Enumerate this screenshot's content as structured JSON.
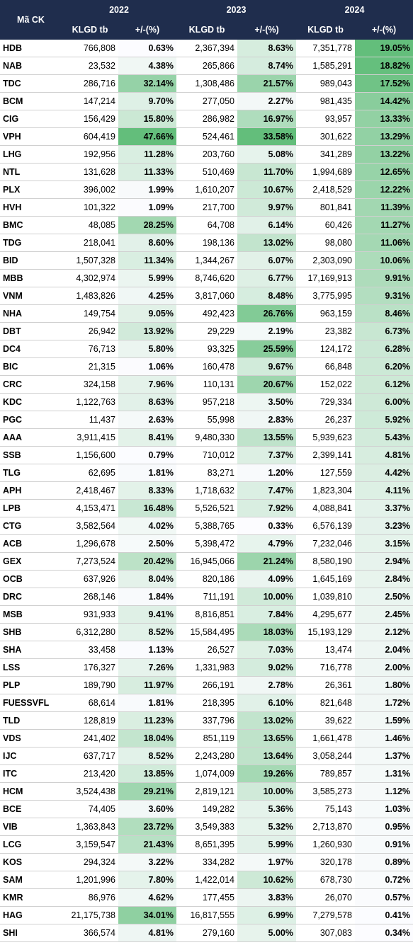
{
  "table": {
    "header": {
      "code": "Mã CK",
      "years": [
        "2022",
        "2023",
        "2024"
      ],
      "sub": [
        "KLGD tb",
        "+/-(%)",
        "KLGD tb",
        "+/-(%)",
        "KLGD tb",
        "+/-(%)"
      ]
    },
    "rows": [
      [
        "HDB",
        "766,808",
        "0.63%",
        "2,367,394",
        "8.63%",
        "7,351,778",
        "19.05%"
      ],
      [
        "NAB",
        "23,532",
        "4.38%",
        "265,866",
        "8.74%",
        "1,585,291",
        "18.82%"
      ],
      [
        "TDC",
        "286,716",
        "32.14%",
        "1,308,486",
        "21.57%",
        "989,043",
        "17.52%"
      ],
      [
        "BCM",
        "147,214",
        "9.70%",
        "277,050",
        "2.27%",
        "981,435",
        "14.42%"
      ],
      [
        "CIG",
        "156,429",
        "15.80%",
        "286,982",
        "16.97%",
        "93,957",
        "13.33%"
      ],
      [
        "VPH",
        "604,419",
        "47.66%",
        "524,461",
        "33.58%",
        "301,622",
        "13.29%"
      ],
      [
        "LHG",
        "192,956",
        "11.28%",
        "203,760",
        "5.08%",
        "341,289",
        "13.22%"
      ],
      [
        "NTL",
        "131,628",
        "11.33%",
        "510,469",
        "11.70%",
        "1,994,689",
        "12.65%"
      ],
      [
        "PLX",
        "396,002",
        "1.99%",
        "1,610,207",
        "10.67%",
        "2,418,529",
        "12.22%"
      ],
      [
        "HVH",
        "101,322",
        "1.09%",
        "217,700",
        "9.97%",
        "801,841",
        "11.39%"
      ],
      [
        "BMC",
        "48,085",
        "28.25%",
        "64,708",
        "6.14%",
        "60,426",
        "11.27%"
      ],
      [
        "TDG",
        "218,041",
        "8.60%",
        "198,136",
        "13.02%",
        "98,080",
        "11.06%"
      ],
      [
        "BID",
        "1,507,328",
        "11.34%",
        "1,344,267",
        "6.07%",
        "2,303,090",
        "10.06%"
      ],
      [
        "MBB",
        "4,302,974",
        "5.99%",
        "8,746,620",
        "6.77%",
        "17,169,913",
        "9.91%"
      ],
      [
        "VNM",
        "1,483,826",
        "4.25%",
        "3,817,060",
        "8.48%",
        "3,775,995",
        "9.31%"
      ],
      [
        "NHA",
        "149,754",
        "9.05%",
        "492,423",
        "26.76%",
        "963,159",
        "8.46%"
      ],
      [
        "DBT",
        "26,942",
        "13.92%",
        "29,229",
        "2.19%",
        "23,382",
        "6.73%"
      ],
      [
        "DC4",
        "76,713",
        "5.80%",
        "93,325",
        "25.59%",
        "124,172",
        "6.28%"
      ],
      [
        "BIC",
        "21,315",
        "1.06%",
        "160,478",
        "9.67%",
        "66,848",
        "6.20%"
      ],
      [
        "CRC",
        "324,158",
        "7.96%",
        "110,131",
        "20.67%",
        "152,022",
        "6.12%"
      ],
      [
        "KDC",
        "1,122,763",
        "8.63%",
        "957,218",
        "3.50%",
        "729,334",
        "6.00%"
      ],
      [
        "PGC",
        "11,437",
        "2.63%",
        "55,998",
        "2.83%",
        "26,237",
        "5.92%"
      ],
      [
        "AAA",
        "3,911,415",
        "8.41%",
        "9,480,330",
        "13.55%",
        "5,939,623",
        "5.43%"
      ],
      [
        "SSB",
        "1,156,600",
        "0.79%",
        "710,012",
        "7.37%",
        "2,399,141",
        "4.81%"
      ],
      [
        "TLG",
        "62,695",
        "1.81%",
        "83,271",
        "1.20%",
        "127,559",
        "4.42%"
      ],
      [
        "APH",
        "2,418,467",
        "8.33%",
        "1,718,632",
        "7.47%",
        "1,823,304",
        "4.11%"
      ],
      [
        "LPB",
        "4,153,471",
        "16.48%",
        "5,526,521",
        "7.92%",
        "4,088,841",
        "3.37%"
      ],
      [
        "CTG",
        "3,582,564",
        "4.02%",
        "5,388,765",
        "0.33%",
        "6,576,139",
        "3.23%"
      ],
      [
        "ACB",
        "1,296,678",
        "2.50%",
        "5,398,472",
        "4.79%",
        "7,232,046",
        "3.15%"
      ],
      [
        "GEX",
        "7,273,524",
        "20.42%",
        "16,945,066",
        "21.24%",
        "8,580,190",
        "2.94%"
      ],
      [
        "OCB",
        "637,926",
        "8.04%",
        "820,186",
        "4.09%",
        "1,645,169",
        "2.84%"
      ],
      [
        "DRC",
        "268,146",
        "1.84%",
        "711,191",
        "10.00%",
        "1,039,810",
        "2.50%"
      ],
      [
        "MSB",
        "931,933",
        "9.41%",
        "8,816,851",
        "7.84%",
        "4,295,677",
        "2.45%"
      ],
      [
        "SHB",
        "6,312,280",
        "8.52%",
        "15,584,495",
        "18.03%",
        "15,193,129",
        "2.12%"
      ],
      [
        "SHA",
        "33,458",
        "1.13%",
        "26,527",
        "7.03%",
        "13,474",
        "2.04%"
      ],
      [
        "LSS",
        "176,327",
        "7.26%",
        "1,331,983",
        "9.02%",
        "716,778",
        "2.00%"
      ],
      [
        "PLP",
        "189,790",
        "11.97%",
        "266,191",
        "2.78%",
        "26,361",
        "1.80%"
      ],
      [
        "FUESSVFL",
        "68,614",
        "1.81%",
        "218,395",
        "6.10%",
        "821,648",
        "1.72%"
      ],
      [
        "TLD",
        "128,819",
        "11.23%",
        "337,796",
        "13.02%",
        "39,622",
        "1.59%"
      ],
      [
        "VDS",
        "241,402",
        "18.04%",
        "851,119",
        "13.65%",
        "1,661,478",
        "1.46%"
      ],
      [
        "IJC",
        "637,717",
        "8.52%",
        "2,243,280",
        "13.64%",
        "3,058,244",
        "1.37%"
      ],
      [
        "ITC",
        "213,420",
        "13.85%",
        "1,074,009",
        "19.26%",
        "789,857",
        "1.31%"
      ],
      [
        "HCM",
        "3,524,438",
        "29.21%",
        "2,819,121",
        "10.00%",
        "3,585,273",
        "1.12%"
      ],
      [
        "BCE",
        "74,405",
        "3.60%",
        "149,282",
        "5.36%",
        "75,143",
        "1.03%"
      ],
      [
        "VIB",
        "1,363,843",
        "23.72%",
        "3,549,383",
        "5.32%",
        "2,713,870",
        "0.95%"
      ],
      [
        "LCG",
        "3,159,547",
        "21.43%",
        "8,651,395",
        "5.99%",
        "1,260,930",
        "0.91%"
      ],
      [
        "KOS",
        "294,324",
        "3.22%",
        "334,282",
        "1.97%",
        "320,178",
        "0.89%"
      ],
      [
        "SAM",
        "1,201,996",
        "7.80%",
        "1,422,014",
        "10.62%",
        "678,730",
        "0.72%"
      ],
      [
        "KMR",
        "86,976",
        "4.62%",
        "177,455",
        "3.83%",
        "26,070",
        "0.57%"
      ],
      [
        "HAG",
        "21,175,738",
        "34.01%",
        "16,817,555",
        "6.99%",
        "7,279,578",
        "0.41%"
      ],
      [
        "SHI",
        "366,574",
        "4.81%",
        "279,160",
        "5.00%",
        "307,083",
        "0.34%"
      ]
    ]
  }
}
